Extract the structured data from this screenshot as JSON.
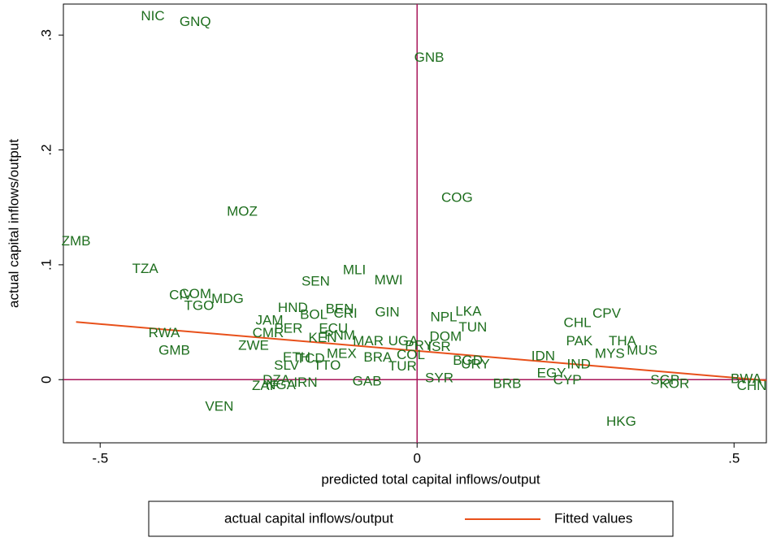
{
  "chart_data": {
    "type": "scatter",
    "x_label": "predicted total capital inflows/output",
    "y_label": "actual capital inflows/output",
    "xlim": [
      -0.558,
      0.551
    ],
    "ylim": [
      -0.055,
      0.327
    ],
    "xticks": [
      {
        "value": -0.5,
        "label": "-.5"
      },
      0,
      {
        "value": 0.5,
        "label": ".5"
      }
    ],
    "yticks": [
      0,
      {
        "value": 0.1,
        "label": ".1"
      },
      {
        "value": 0.2,
        "label": ".2"
      },
      {
        "value": 0.3,
        "label": ".3"
      }
    ],
    "reference_lines": {
      "x": 0,
      "y": 0,
      "color": "#a8175a"
    },
    "series": [
      {
        "name": "actual capital inflows/output",
        "color": "#1e6e1e",
        "labels": [
          "NIC",
          "GNQ",
          "GNB",
          "COG",
          "MOZ",
          "ZMB",
          "TZA",
          "MLI",
          "SEN",
          "MWI",
          "CIV",
          "COM",
          "MDG",
          "TGO",
          "HND",
          "BOL",
          "BEN",
          "CRI",
          "GIN",
          "NPL",
          "LKA",
          "CHL",
          "CPV",
          "TUN",
          "JAM",
          "RWA",
          "DOM",
          "PAK",
          "THA",
          "MYS",
          "MUS",
          "PER",
          "CMR",
          "ECU",
          "PNM",
          "UGA",
          "ISR",
          "PRY",
          "ZWE",
          "GMB",
          "KEN",
          "MAR",
          "IND",
          "IDN",
          "EGY",
          "CYP",
          "BRB",
          "SYR",
          "BGD",
          "URY",
          "GAB",
          "TUR",
          "BRA",
          "COL",
          "MEX",
          "ETH",
          "TCD",
          "SLV",
          "TTO",
          "DZA",
          "ZAF",
          "NGA",
          "IRN",
          "VEN",
          "HKG",
          "SGP",
          "KOR",
          "BWA",
          "CHN"
        ],
        "x": [
          -0.417,
          -0.35,
          0.019,
          0.063,
          -0.276,
          -0.538,
          -0.429,
          -0.099,
          -0.16,
          -0.045,
          -0.373,
          -0.35,
          -0.299,
          -0.344,
          -0.196,
          -0.163,
          -0.122,
          -0.113,
          -0.047,
          0.042,
          0.081,
          0.253,
          0.299,
          0.088,
          -0.233,
          -0.399,
          0.045,
          0.256,
          0.324,
          0.304,
          0.355,
          -0.203,
          -0.235,
          -0.132,
          -0.122,
          -0.022,
          0.035,
          0.003,
          -0.258,
          -0.383,
          -0.149,
          -0.077,
          0.255,
          0.199,
          0.212,
          0.237,
          0.142,
          0.035,
          0.08,
          0.092,
          -0.079,
          -0.023,
          -0.062,
          -0.01,
          -0.119,
          -0.19,
          -0.168,
          -0.206,
          -0.142,
          -0.222,
          -0.24,
          -0.215,
          -0.176,
          -0.312,
          0.322,
          0.391,
          0.406,
          0.519,
          0.528
        ],
        "values": [
          0.316,
          0.311,
          0.28,
          0.158,
          0.146,
          0.12,
          0.096,
          0.095,
          0.085,
          0.086,
          0.073,
          0.074,
          0.07,
          0.064,
          0.062,
          0.056,
          0.061,
          0.057,
          0.058,
          0.054,
          0.059,
          0.049,
          0.057,
          0.045,
          0.051,
          0.04,
          0.037,
          0.033,
          0.033,
          0.022,
          0.025,
          0.044,
          0.04,
          0.044,
          0.038,
          0.033,
          0.028,
          0.029,
          0.029,
          0.025,
          0.036,
          0.033,
          0.013,
          0.02,
          0.005,
          -0.001,
          -0.004,
          0.001,
          0.016,
          0.013,
          -0.002,
          0.011,
          0.019,
          0.021,
          0.022,
          0.019,
          0.018,
          0.012,
          0.012,
          -0.001,
          -0.006,
          -0.005,
          -0.003,
          -0.024,
          -0.037,
          -0.001,
          -0.004,
          0,
          -0.006
        ]
      },
      {
        "name": "Fitted values",
        "color": "#e8501a",
        "x": [
          -0.538,
          0.551
        ],
        "values": [
          0.0502,
          -0.0007
        ]
      }
    ]
  }
}
